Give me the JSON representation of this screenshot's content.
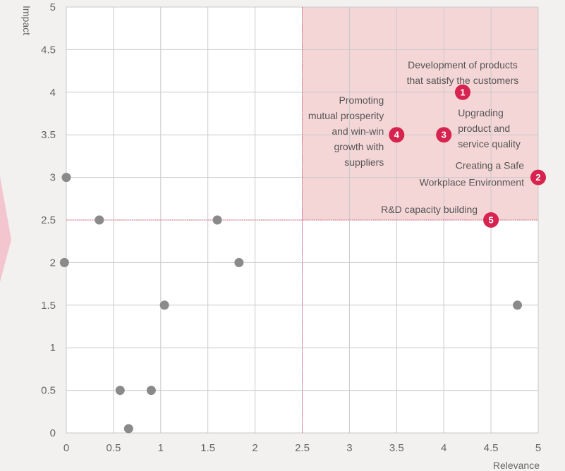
{
  "colors": {
    "background": "#f2f1ef",
    "plot_background": "#ffffff",
    "highlight_region": "#f5d6d6",
    "grid": "#c9c9c9",
    "threshold_line": "#e0607a",
    "point": "#8a8a8a",
    "badge": "#d6234f",
    "side_arrow": "#f3c6cf"
  },
  "chart_data": {
    "type": "scatter",
    "xlabel": "Relevance",
    "ylabel": "Impact",
    "xlim": [
      0,
      5
    ],
    "ylim": [
      0,
      5
    ],
    "x_ticks": [
      "0",
      "0.5",
      "1",
      "1.5",
      "2",
      "2.5",
      "3",
      "3.5",
      "4",
      "4.5",
      "5"
    ],
    "y_ticks": [
      "0",
      "0.5",
      "1",
      "1.5",
      "2",
      "2.5",
      "3",
      "3.5",
      "4",
      "4.5",
      "5"
    ],
    "grid": true,
    "thresholds": {
      "x": 2.5,
      "y": 2.5
    },
    "highlight_region": {
      "x": [
        2.5,
        5
      ],
      "y": [
        2.5,
        5
      ]
    },
    "gray_points": [
      {
        "x": 0.0,
        "y": 3.0
      },
      {
        "x": 0.35,
        "y": 2.5
      },
      {
        "x": -0.02,
        "y": 2.0
      },
      {
        "x": 0.57,
        "y": 0.5
      },
      {
        "x": 0.66,
        "y": 0.05
      },
      {
        "x": 0.9,
        "y": 0.5
      },
      {
        "x": 1.04,
        "y": 1.5
      },
      {
        "x": 1.6,
        "y": 2.5
      },
      {
        "x": 1.83,
        "y": 2.0
      },
      {
        "x": 4.78,
        "y": 1.5
      }
    ],
    "material_issues": [
      {
        "num": "1",
        "x": 4.2,
        "y": 4.0,
        "lines": [
          "Development of products",
          "that satisfy the customers"
        ]
      },
      {
        "num": "2",
        "x": 5.0,
        "y": 3.0,
        "lines": [
          "Creating a Safe",
          "Workplace Environment"
        ]
      },
      {
        "num": "3",
        "x": 4.0,
        "y": 3.5,
        "lines": [
          "Upgrading",
          "product and",
          "service quality"
        ]
      },
      {
        "num": "4",
        "x": 3.5,
        "y": 3.5,
        "lines": [
          "Promoting",
          "mutual prosperity",
          "and win-win",
          "growth with",
          "suppliers"
        ]
      },
      {
        "num": "5",
        "x": 4.5,
        "y": 2.5,
        "lines": [
          "R&D capacity building"
        ]
      }
    ]
  }
}
